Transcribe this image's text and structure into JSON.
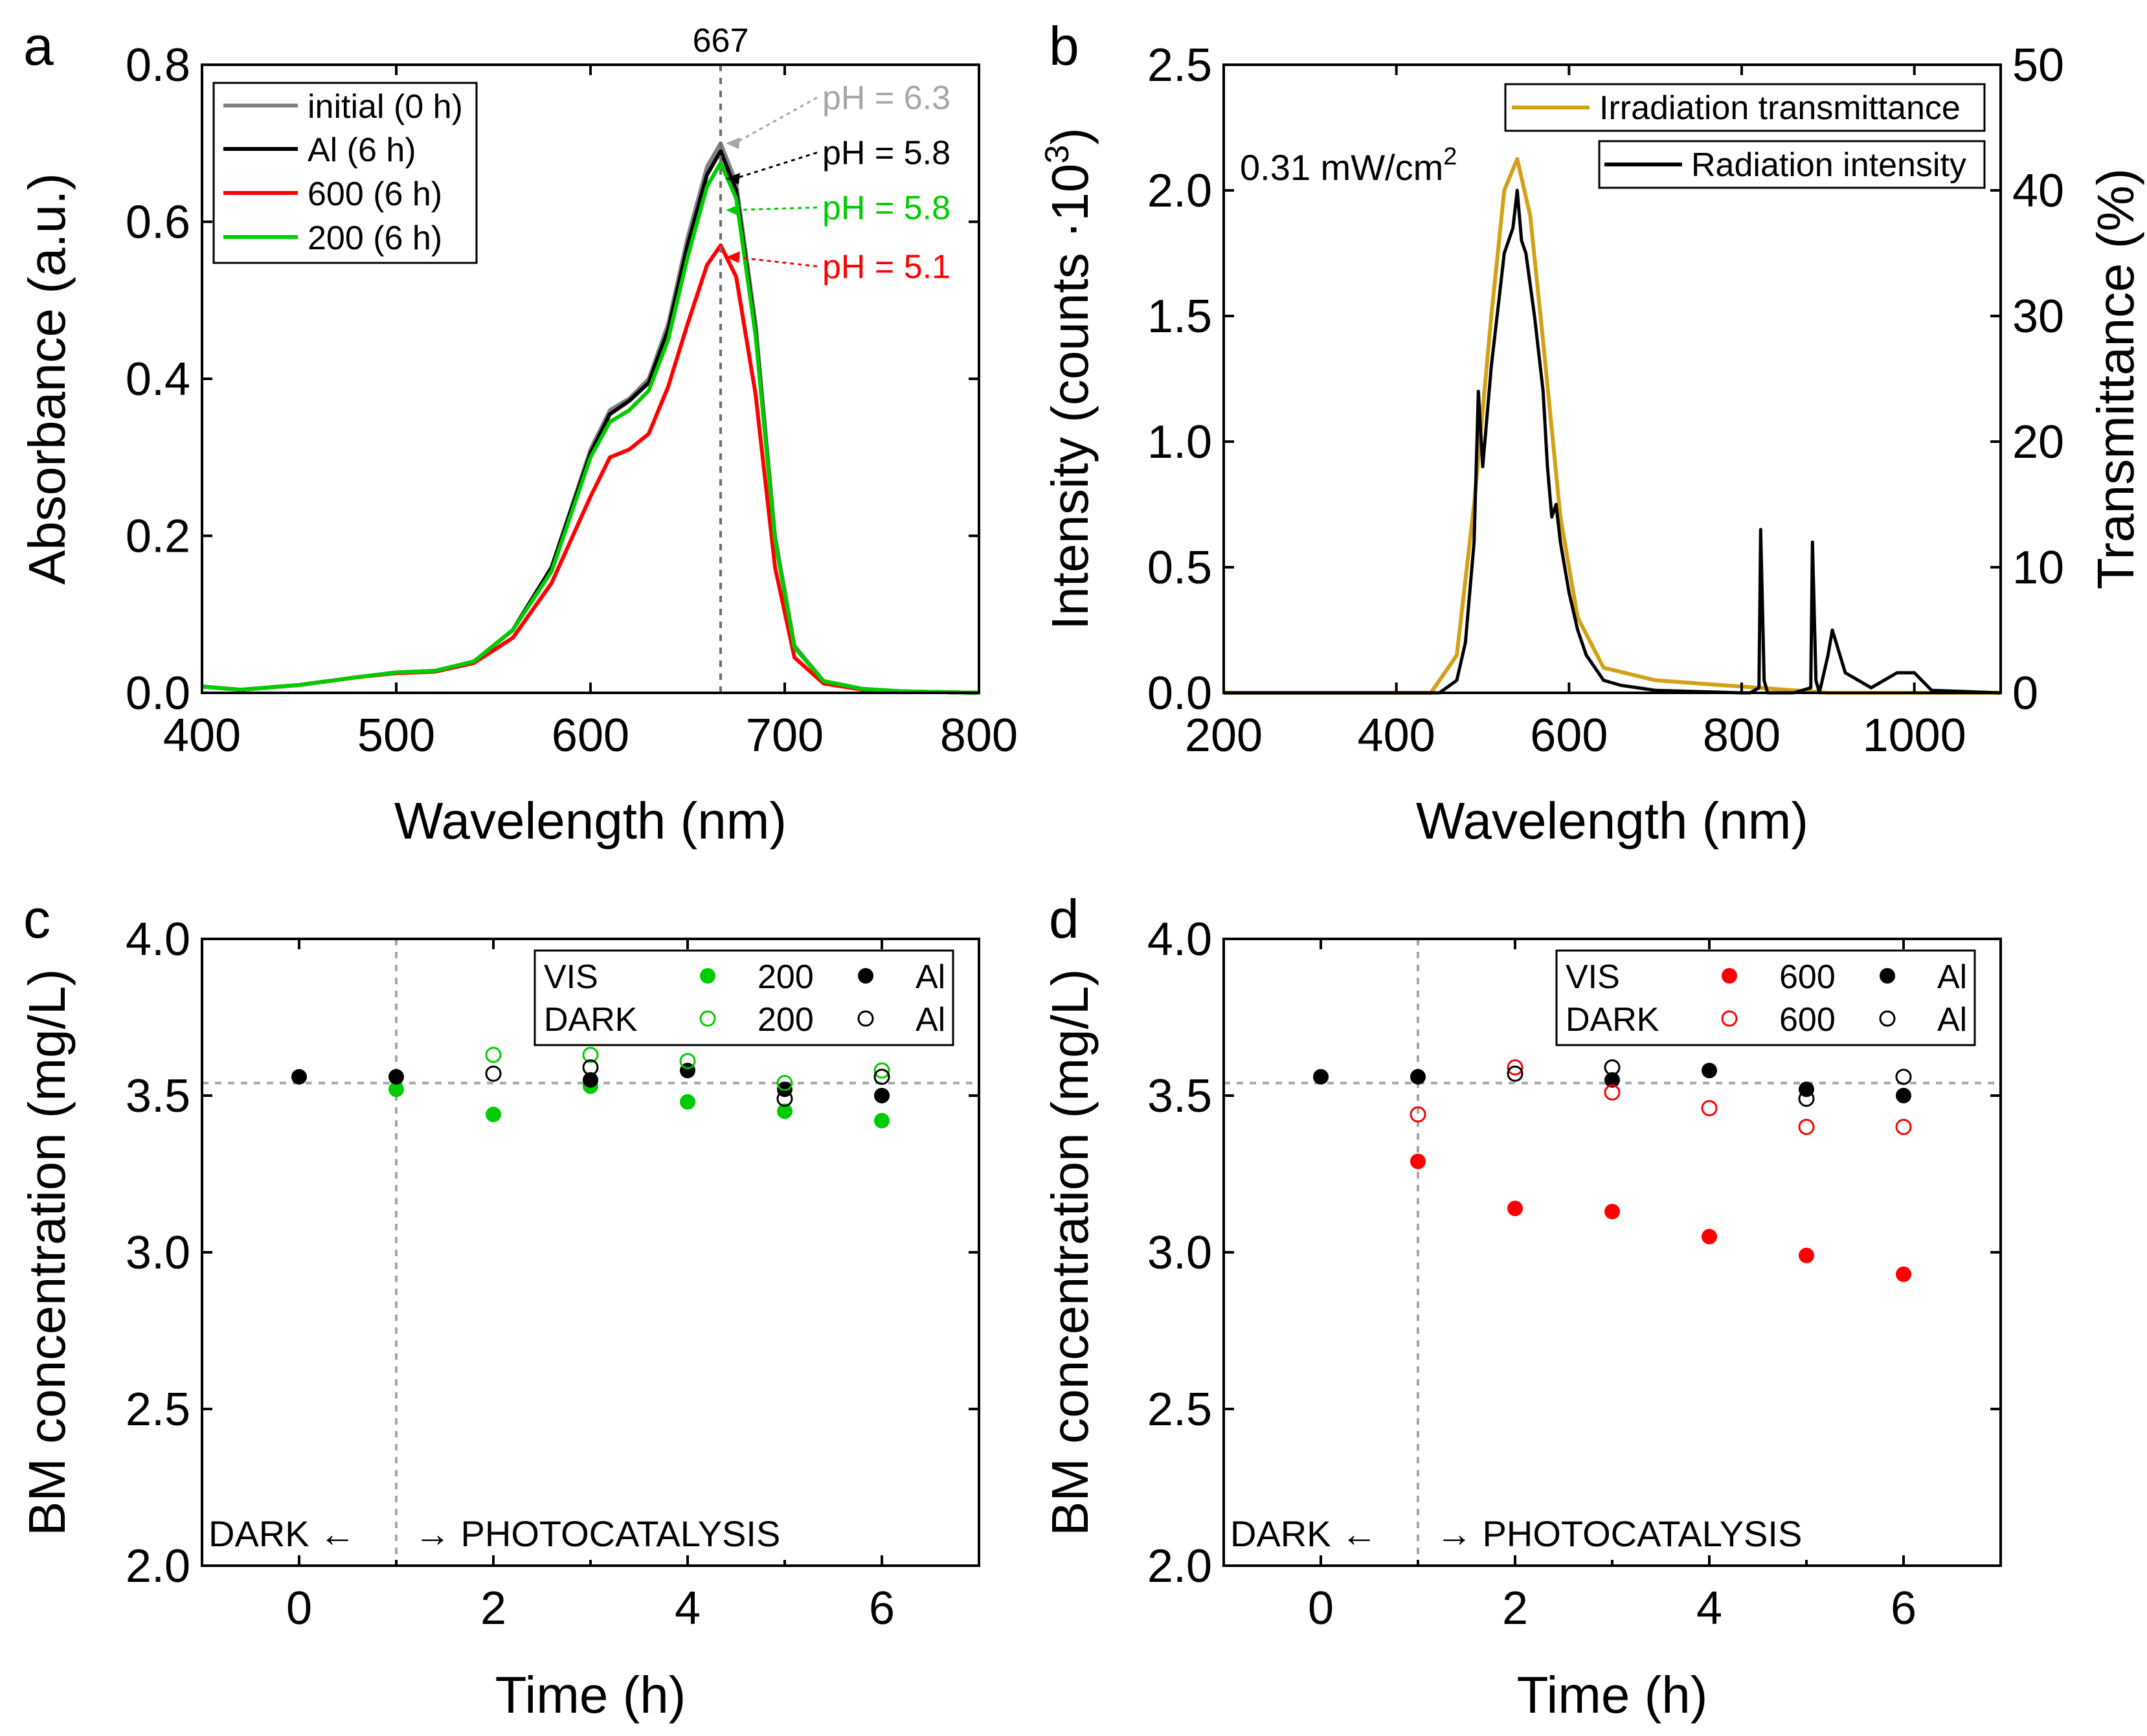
{
  "chart_data": [
    {
      "panel": "a",
      "type": "line",
      "xlabel": "Wavelength (nm)",
      "ylabel": "Absorbance (a.u.)",
      "xlim": [
        400,
        800
      ],
      "ylim": [
        0.0,
        0.8
      ],
      "xticks": [
        "400",
        "500",
        "600",
        "700",
        "800"
      ],
      "yticks": [
        "0.0",
        "0.2",
        "0.4",
        "0.6",
        "0.8"
      ],
      "reference_line_label": "667",
      "reference_line_x": 667,
      "legend_position": "top-left",
      "series": [
        {
          "name": "initial (0 h)",
          "color": "#808080",
          "x": [
            400,
            420,
            450,
            480,
            500,
            520,
            540,
            560,
            580,
            600,
            610,
            620,
            630,
            640,
            650,
            660,
            667,
            675,
            685,
            695,
            705,
            720,
            740,
            760,
            800
          ],
          "y": [
            0.008,
            0.004,
            0.01,
            0.02,
            0.026,
            0.028,
            0.04,
            0.08,
            0.16,
            0.31,
            0.36,
            0.375,
            0.4,
            0.47,
            0.58,
            0.67,
            0.7,
            0.65,
            0.47,
            0.2,
            0.06,
            0.015,
            0.005,
            0.002,
            0.0
          ]
        },
        {
          "name": "Al (6 h)",
          "color": "#000000",
          "x": [
            400,
            420,
            450,
            480,
            500,
            520,
            540,
            560,
            580,
            600,
            610,
            620,
            630,
            640,
            650,
            660,
            667,
            675,
            685,
            695,
            705,
            720,
            740,
            760,
            800
          ],
          "y": [
            0.008,
            0.004,
            0.01,
            0.02,
            0.026,
            0.028,
            0.04,
            0.08,
            0.16,
            0.305,
            0.355,
            0.372,
            0.395,
            0.462,
            0.57,
            0.66,
            0.69,
            0.64,
            0.46,
            0.195,
            0.058,
            0.015,
            0.005,
            0.002,
            0.0
          ]
        },
        {
          "name": "600 (6 h)",
          "color": "#ff0000",
          "x": [
            400,
            420,
            450,
            480,
            500,
            520,
            540,
            560,
            580,
            600,
            610,
            620,
            630,
            640,
            650,
            660,
            667,
            675,
            685,
            695,
            705,
            720,
            740,
            760,
            800
          ],
          "y": [
            0.008,
            0.004,
            0.01,
            0.02,
            0.025,
            0.027,
            0.038,
            0.07,
            0.14,
            0.25,
            0.3,
            0.31,
            0.33,
            0.39,
            0.47,
            0.545,
            0.57,
            0.53,
            0.38,
            0.16,
            0.045,
            0.012,
            0.004,
            0.002,
            0.0
          ]
        },
        {
          "name": "200 (6 h)",
          "color": "#00cc00",
          "x": [
            400,
            420,
            450,
            480,
            500,
            520,
            540,
            560,
            580,
            600,
            610,
            620,
            630,
            640,
            650,
            660,
            667,
            675,
            685,
            695,
            705,
            720,
            740,
            760,
            800
          ],
          "y": [
            0.008,
            0.004,
            0.01,
            0.02,
            0.026,
            0.028,
            0.04,
            0.08,
            0.155,
            0.3,
            0.345,
            0.36,
            0.385,
            0.45,
            0.555,
            0.645,
            0.675,
            0.63,
            0.455,
            0.195,
            0.058,
            0.015,
            0.005,
            0.002,
            0.0
          ]
        }
      ],
      "annotations": [
        {
          "text": "pH = 6.3",
          "color": "#a6a6a6",
          "point_x": 667,
          "point_y": 0.7,
          "text_at_y": 0.745
        },
        {
          "text": "pH = 5.8",
          "color": "#000000",
          "point_x": 667,
          "point_y": 0.655,
          "text_at_y": 0.675
        },
        {
          "text": "pH = 5.8",
          "color": "#00cc00",
          "point_x": 667,
          "point_y": 0.615,
          "text_at_y": 0.605
        },
        {
          "text": "pH = 5.1",
          "color": "#ff0000",
          "point_x": 667,
          "point_y": 0.555,
          "text_at_y": 0.53
        }
      ]
    },
    {
      "panel": "b",
      "type": "line",
      "xlabel": "Wavelength (nm)",
      "ylabel": "Intensity (counts ·10",
      "ylabel_superscript": "3",
      "ylabel_close": ")",
      "y2label": "Transmittance (%)",
      "xlim": [
        200,
        1100
      ],
      "ylim": [
        0.0,
        2.5
      ],
      "y2lim": [
        0,
        50
      ],
      "xticks": [
        "200",
        "400",
        "600",
        "800",
        "1000"
      ],
      "yticks": [
        "0.0",
        "0.5",
        "1.0",
        "1.5",
        "2.0",
        "2.5"
      ],
      "y2ticks": [
        "0",
        "10",
        "20",
        "30",
        "40",
        "50"
      ],
      "power_note": "0.31 mW/cm",
      "power_note_superscript": "2",
      "legend_position": "top-right",
      "series": [
        {
          "name": "Irradiation transmittance",
          "color": "#d4a017",
          "axis": "right",
          "x": [
            200,
            440,
            470,
            490,
            510,
            525,
            540,
            555,
            570,
            590,
            610,
            640,
            700,
            800,
            900,
            1100
          ],
          "y": [
            0,
            0,
            3,
            15,
            30,
            40,
            42.5,
            38,
            28,
            14,
            6,
            2,
            1,
            0.5,
            0,
            0
          ]
        },
        {
          "name": "Radiation intensity",
          "color": "#000000",
          "axis": "left",
          "x": [
            200,
            450,
            470,
            480,
            490,
            495,
            500,
            510,
            520,
            525,
            530,
            535,
            540,
            545,
            550,
            560,
            570,
            575,
            580,
            585,
            590,
            600,
            610,
            620,
            640,
            660,
            700,
            800,
            810,
            820,
            822,
            826,
            830,
            860,
            880,
            882,
            886,
            890,
            900,
            905,
            920,
            950,
            980,
            1000,
            1020,
            1100
          ],
          "y": [
            0,
            0,
            0.05,
            0.2,
            0.6,
            1.2,
            0.9,
            1.3,
            1.6,
            1.75,
            1.8,
            1.85,
            2.0,
            1.8,
            1.75,
            1.5,
            1.2,
            0.9,
            0.7,
            0.75,
            0.6,
            0.4,
            0.25,
            0.15,
            0.05,
            0.03,
            0.01,
            0,
            0.0,
            0.02,
            0.65,
            0.05,
            0.0,
            0.0,
            0.02,
            0.6,
            0.05,
            0.0,
            0.15,
            0.25,
            0.08,
            0.02,
            0.08,
            0.08,
            0.01,
            0
          ]
        }
      ]
    },
    {
      "panel": "c",
      "type": "scatter",
      "xlabel": "Time (h)",
      "ylabel": "BM concentration (mg/L)",
      "xlim": [
        -1,
        7
      ],
      "ylim": [
        2.0,
        4.0
      ],
      "xticks": [
        "0",
        "2",
        "4",
        "6"
      ],
      "yticks": [
        "2.0",
        "2.5",
        "3.0",
        "3.5",
        "4.0"
      ],
      "vertical_ref_x": 1,
      "horizontal_ref_y": 3.54,
      "region_left_label": "DARK ←",
      "region_right_label": "→ PHOTOCATALYSIS",
      "legend_position": "top-right",
      "legend_rows": [
        {
          "mode": "VIS",
          "series_a_label": "200",
          "series_b_label": "Al"
        },
        {
          "mode": "DARK",
          "series_a_label": "200",
          "series_b_label": "Al"
        }
      ],
      "series": [
        {
          "name": "VIS 200",
          "color": "#00cc00",
          "filled": true,
          "x": [
            1,
            2,
            3,
            4,
            5,
            6
          ],
          "y": [
            3.52,
            3.44,
            3.53,
            3.48,
            3.45,
            3.42
          ]
        },
        {
          "name": "VIS Al",
          "color": "#000000",
          "filled": true,
          "x": [
            0,
            1,
            3,
            4,
            5,
            6
          ],
          "y": [
            3.56,
            3.56,
            3.55,
            3.58,
            3.52,
            3.5
          ]
        },
        {
          "name": "DARK 200",
          "color": "#00cc00",
          "filled": false,
          "x": [
            2,
            3,
            4,
            5,
            6
          ],
          "y": [
            3.63,
            3.63,
            3.61,
            3.54,
            3.58
          ]
        },
        {
          "name": "DARK Al",
          "color": "#000000",
          "filled": false,
          "x": [
            2,
            3,
            5,
            6
          ],
          "y": [
            3.57,
            3.59,
            3.49,
            3.56
          ]
        }
      ]
    },
    {
      "panel": "d",
      "type": "scatter",
      "xlabel": "Time (h)",
      "ylabel": "BM concentration (mg/L)",
      "xlim": [
        -1,
        7
      ],
      "ylim": [
        2.0,
        4.0
      ],
      "xticks": [
        "0",
        "2",
        "4",
        "6"
      ],
      "yticks": [
        "2.0",
        "2.5",
        "3.0",
        "3.5",
        "4.0"
      ],
      "vertical_ref_x": 1,
      "horizontal_ref_y": 3.54,
      "region_left_label": "DARK ←",
      "region_right_label": "→ PHOTOCATALYSIS",
      "legend_position": "top-right",
      "legend_rows": [
        {
          "mode": "VIS",
          "series_a_label": "600",
          "series_b_label": "Al"
        },
        {
          "mode": "DARK",
          "series_a_label": "600",
          "series_b_label": "Al"
        }
      ],
      "series": [
        {
          "name": "VIS 600",
          "color": "#ff0000",
          "filled": true,
          "x": [
            1,
            2,
            3,
            4,
            5,
            6
          ],
          "y": [
            3.29,
            3.14,
            3.13,
            3.05,
            2.99,
            2.93
          ]
        },
        {
          "name": "VIS Al",
          "color": "#000000",
          "filled": true,
          "x": [
            0,
            1,
            3,
            4,
            5,
            6
          ],
          "y": [
            3.56,
            3.56,
            3.55,
            3.58,
            3.52,
            3.5
          ]
        },
        {
          "name": "DARK 600",
          "color": "#ff0000",
          "filled": false,
          "x": [
            1,
            2,
            3,
            4,
            5,
            6
          ],
          "y": [
            3.44,
            3.59,
            3.51,
            3.46,
            3.4,
            3.4
          ]
        },
        {
          "name": "DARK Al",
          "color": "#000000",
          "filled": false,
          "x": [
            2,
            3,
            5,
            6
          ],
          "y": [
            3.57,
            3.59,
            3.49,
            3.56
          ]
        }
      ]
    }
  ]
}
